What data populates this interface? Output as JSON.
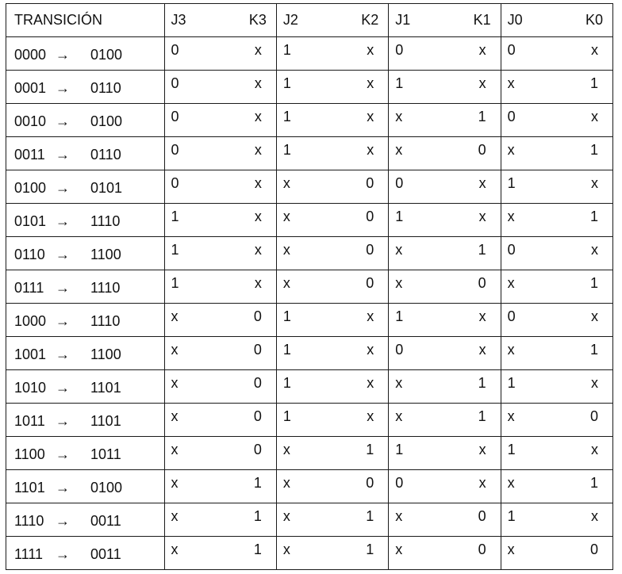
{
  "table": {
    "header": {
      "transition": "TRANSICIÓN",
      "pairs": [
        [
          "J3",
          "K3"
        ],
        [
          "J2",
          "K2"
        ],
        [
          "J1",
          "K1"
        ],
        [
          "J0",
          "K0"
        ]
      ]
    },
    "arrow": "→",
    "rows": [
      {
        "from": "0000",
        "to": "0100",
        "vals": [
          "0",
          "x",
          "1",
          "x",
          "0",
          "x",
          "0",
          "x"
        ]
      },
      {
        "from": "0001",
        "to": "0110",
        "vals": [
          "0",
          "x",
          "1",
          "x",
          "1",
          "x",
          "x",
          "1"
        ]
      },
      {
        "from": "0010",
        "to": "0100",
        "vals": [
          "0",
          "x",
          "1",
          "x",
          "x",
          "1",
          "0",
          "x"
        ]
      },
      {
        "from": "0011",
        "to": "0110",
        "vals": [
          "0",
          "x",
          "1",
          "x",
          "x",
          "0",
          "x",
          "1"
        ]
      },
      {
        "from": "0100",
        "to": "0101",
        "vals": [
          "0",
          "x",
          "x",
          "0",
          "0",
          "x",
          "1",
          "x"
        ]
      },
      {
        "from": "0101",
        "to": "1110",
        "vals": [
          "1",
          "x",
          "x",
          "0",
          "1",
          "x",
          "x",
          "1"
        ]
      },
      {
        "from": "0110",
        "to": "1100",
        "vals": [
          "1",
          "x",
          "x",
          "0",
          "x",
          "1",
          "0",
          "x"
        ]
      },
      {
        "from": "0111",
        "to": "1110",
        "vals": [
          "1",
          "x",
          "x",
          "0",
          "x",
          "0",
          "x",
          "1"
        ]
      },
      {
        "from": "1000",
        "to": "1110",
        "vals": [
          "x",
          "0",
          "1",
          "x",
          "1",
          "x",
          "0",
          "x"
        ]
      },
      {
        "from": "1001",
        "to": "1100",
        "vals": [
          "x",
          "0",
          "1",
          "x",
          "0",
          "x",
          "x",
          "1"
        ]
      },
      {
        "from": "1010",
        "to": "1101",
        "vals": [
          "x",
          "0",
          "1",
          "x",
          "x",
          "1",
          "1",
          "x"
        ]
      },
      {
        "from": "1011",
        "to": "1101",
        "vals": [
          "x",
          "0",
          "1",
          "x",
          "x",
          "1",
          "x",
          "0"
        ]
      },
      {
        "from": "1100",
        "to": "1011",
        "vals": [
          "x",
          "0",
          "x",
          "1",
          "1",
          "x",
          "1",
          "x"
        ]
      },
      {
        "from": "1101",
        "to": "0100",
        "vals": [
          "x",
          "1",
          "x",
          "0",
          "0",
          "x",
          "x",
          "1"
        ]
      },
      {
        "from": "1110",
        "to": "0011",
        "vals": [
          "x",
          "1",
          "x",
          "1",
          "x",
          "0",
          "1",
          "x"
        ]
      },
      {
        "from": "1111",
        "to": "0011",
        "vals": [
          "x",
          "1",
          "x",
          "1",
          "x",
          "0",
          "x",
          "0"
        ]
      }
    ]
  }
}
